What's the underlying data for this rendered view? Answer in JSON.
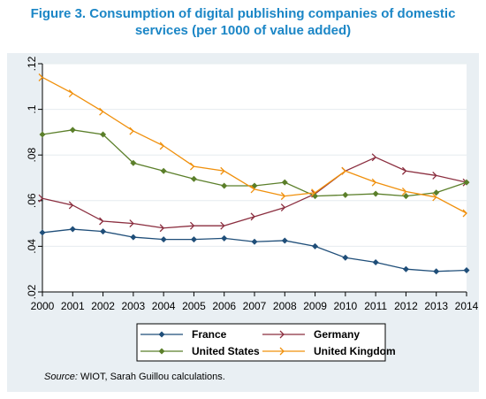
{
  "title_line1": "Figure 3. Consumption of digital publishing companies of domestic",
  "title_line2": "services (per 1000 of value added)",
  "source_label": "Source:",
  "source_text": " WIOT, Sarah Guillou calculations.",
  "colors": {
    "title": "#1b86c6",
    "panel_background": "#e9eff3",
    "plot_background": "#ffffff",
    "gridline": "#e6ecef",
    "France": "#1f4e79",
    "Germany": "#8b2e3f",
    "United States": "#5b7f2a",
    "United Kingdom": "#f0900c"
  },
  "chart_data": {
    "type": "line",
    "x": [
      2000,
      2001,
      2002,
      2003,
      2004,
      2005,
      2006,
      2007,
      2008,
      2009,
      2010,
      2011,
      2012,
      2013,
      2014
    ],
    "ylim": [
      0.02,
      0.12
    ],
    "yticks": [
      ".02",
      ".04",
      ".06",
      ".08",
      ".1",
      ".12"
    ],
    "xlabel": "",
    "ylabel": "",
    "grid": true,
    "legend_position": "bottom",
    "series": [
      {
        "name": "France",
        "marker": "diamond",
        "values": [
          0.046,
          0.0475,
          0.0465,
          0.044,
          0.043,
          0.043,
          0.0435,
          0.042,
          0.0425,
          0.04,
          0.035,
          0.033,
          0.03,
          0.029,
          0.0295
        ]
      },
      {
        "name": "Germany",
        "marker": "tick",
        "values": [
          0.061,
          0.058,
          0.051,
          0.05,
          0.048,
          0.049,
          0.049,
          0.053,
          0.057,
          0.063,
          0.073,
          0.079,
          0.073,
          0.071,
          0.068
        ]
      },
      {
        "name": "United States",
        "marker": "diamond",
        "values": [
          0.089,
          0.091,
          0.089,
          0.0765,
          0.073,
          0.0695,
          0.0665,
          0.0665,
          0.068,
          0.062,
          0.0625,
          0.063,
          0.062,
          0.0635,
          0.068
        ]
      },
      {
        "name": "United Kingdom",
        "marker": "tick",
        "values": [
          0.114,
          0.107,
          0.099,
          0.0905,
          0.084,
          0.075,
          0.073,
          0.065,
          0.062,
          0.0635,
          0.073,
          0.068,
          0.064,
          0.0615,
          0.0545
        ]
      }
    ]
  }
}
